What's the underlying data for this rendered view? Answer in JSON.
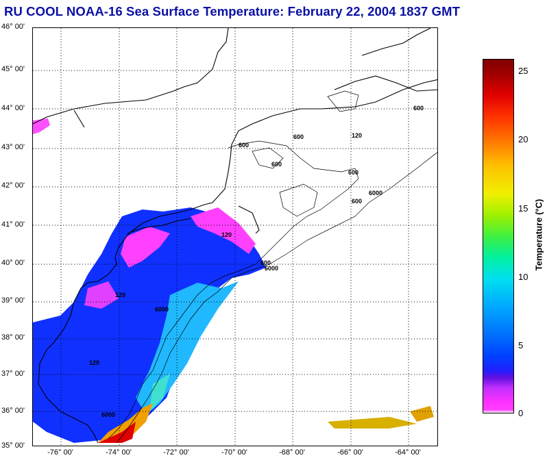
{
  "title": "RU COOL  NOAA-16  Sea Surface Temperature:  February 22, 2004 1837 GMT",
  "map": {
    "latitude_labels": [
      "46° 00'",
      "45° 00'",
      "44° 00'",
      "43° 00'",
      "42° 00'",
      "41° 00'",
      "40° 00'",
      "39° 00'",
      "38° 00'",
      "37° 00'",
      "36° 00'",
      "35° 00'"
    ],
    "longitude_labels": [
      "-76° 00'",
      "-74° 00'",
      "-72° 00'",
      "-70° 00'",
      "-68° 00'",
      "-66° 00'",
      "-64° 00'"
    ],
    "lat_range": [
      35,
      46
    ],
    "lon_range": [
      -77,
      -63
    ],
    "contour_labels": [
      "120",
      "600",
      "6000"
    ]
  },
  "colorbar": {
    "label": "Temperature (°C)",
    "ticks": [
      "25",
      "20",
      "15",
      "10",
      "5",
      "0"
    ],
    "range": [
      0,
      26
    ]
  },
  "colors": {
    "title": "#0b10a3",
    "coast": "#000000",
    "grid": "#000000"
  }
}
